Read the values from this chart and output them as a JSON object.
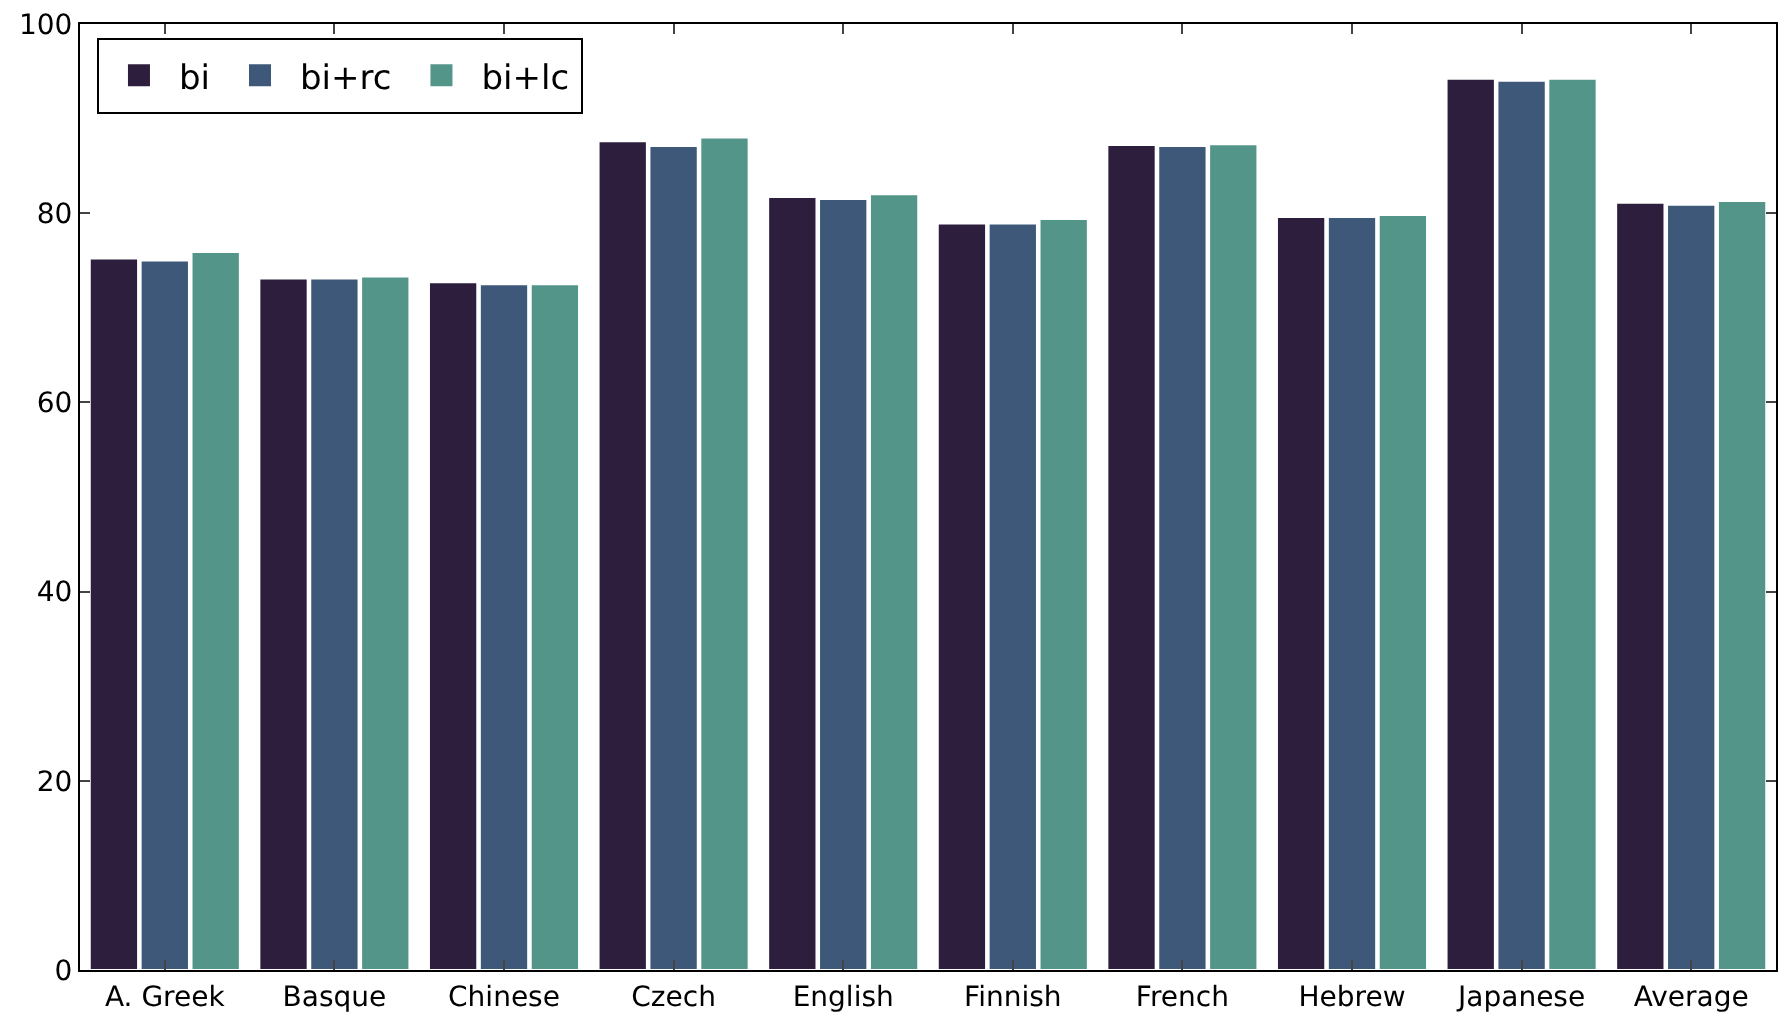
{
  "chart_data": {
    "type": "bar",
    "categories": [
      "A. Greek",
      "Basque",
      "Chinese",
      "Czech",
      "English",
      "Finnish",
      "French",
      "Hebrew",
      "Japanese",
      "Average"
    ],
    "series": [
      {
        "name": "bi",
        "color": "#2d1e3e",
        "values": [
          75.2,
          73.1,
          72.7,
          87.6,
          81.7,
          78.9,
          87.2,
          79.6,
          94.2,
          81.1
        ]
      },
      {
        "name": "bi+rc",
        "color": "#3d5878",
        "values": [
          75.0,
          73.1,
          72.5,
          87.1,
          81.5,
          78.9,
          87.1,
          79.6,
          94.0,
          80.9
        ]
      },
      {
        "name": "bi+lc",
        "color": "#54958a",
        "values": [
          75.9,
          73.3,
          72.5,
          88.0,
          82.0,
          79.4,
          87.3,
          79.8,
          94.2,
          81.3
        ]
      }
    ],
    "ylim": [
      0,
      100
    ],
    "yticks": [
      0,
      20,
      40,
      60,
      80,
      100
    ],
    "grid": false,
    "legend": "top left"
  }
}
